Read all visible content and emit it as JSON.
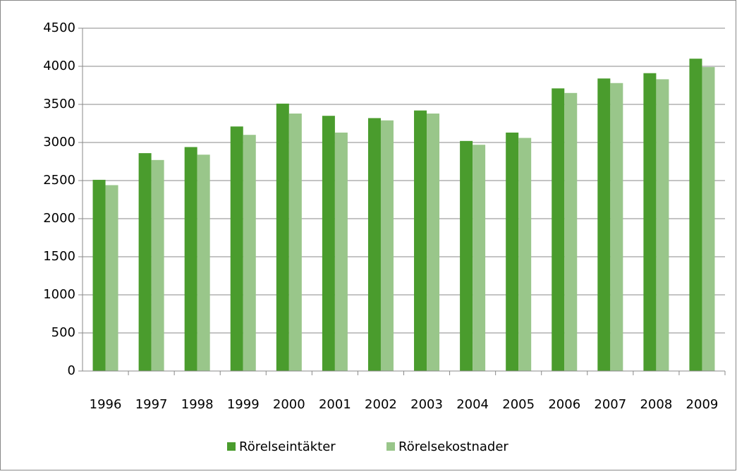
{
  "chart_data": {
    "type": "bar",
    "categories": [
      "1996",
      "1997",
      "1998",
      "1999",
      "2000",
      "2001",
      "2002",
      "2003",
      "2004",
      "2005",
      "2006",
      "2007",
      "2008",
      "2009"
    ],
    "series": [
      {
        "name": "Rörelseintäkter",
        "color": "#4a9c2d",
        "values": [
          2510,
          2860,
          2940,
          3210,
          3510,
          3350,
          3320,
          3420,
          3020,
          3130,
          3710,
          3840,
          3910,
          4100
        ]
      },
      {
        "name": "Rörelsekostnader",
        "color": "#99c68a",
        "values": [
          2440,
          2770,
          2840,
          3100,
          3380,
          3130,
          3290,
          3380,
          2970,
          3060,
          3650,
          3780,
          3830,
          3990
        ]
      }
    ],
    "ylim": [
      0,
      4500
    ],
    "yticks": [
      0,
      500,
      1000,
      1500,
      2000,
      2500,
      3000,
      3500,
      4000,
      4500
    ],
    "grid": true,
    "legend": "bottom"
  }
}
